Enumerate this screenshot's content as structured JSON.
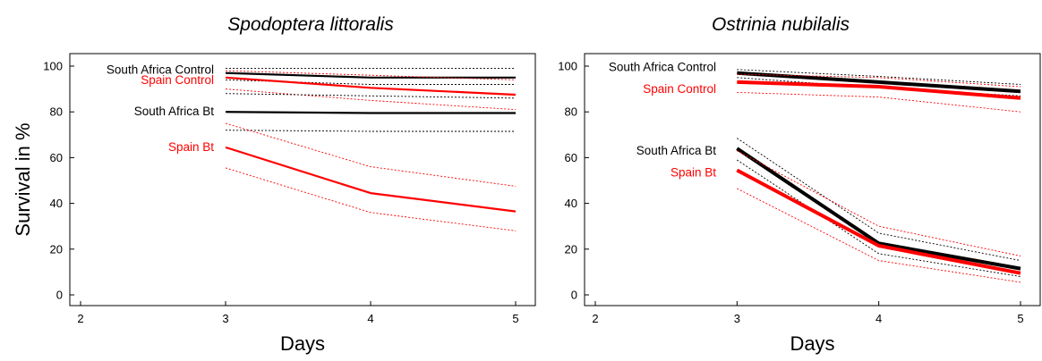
{
  "ylabel": "Survival in %",
  "chart_data": [
    {
      "type": "line",
      "title": "Spodoptera littoralis",
      "xlabel": "Days",
      "ylabel": "Survival in %",
      "xlim": [
        2,
        5
      ],
      "ylim": [
        0,
        100
      ],
      "xticks": [
        2,
        3,
        4,
        5
      ],
      "yticks": [
        0,
        20,
        40,
        60,
        80,
        100
      ],
      "grid": false,
      "series": [
        {
          "name": "South Africa Control",
          "color": "#000000",
          "x": [
            3,
            4,
            5
          ],
          "values": [
            97,
            95,
            95
          ],
          "ci_upper": [
            99,
            99,
            99
          ],
          "ci_lower": [
            94,
            92,
            92
          ]
        },
        {
          "name": "Spain Control",
          "color": "#ff0000",
          "x": [
            3,
            4,
            5
          ],
          "values": [
            95,
            90.5,
            87.5
          ],
          "ci_upper": [
            98,
            96,
            94
          ],
          "ci_lower": [
            90,
            85,
            81
          ]
        },
        {
          "name": "South Africa Bt",
          "color": "#000000",
          "x": [
            3,
            4,
            5
          ],
          "values": [
            80,
            79.5,
            79.5
          ],
          "ci_upper": [
            88,
            87,
            86
          ],
          "ci_lower": [
            72,
            71.5,
            71.5
          ]
        },
        {
          "name": "Spain Bt",
          "color": "#ff0000",
          "x": [
            3,
            4,
            5
          ],
          "values": [
            64.5,
            44.5,
            36.5
          ],
          "ci_upper": [
            75,
            56,
            47.5
          ],
          "ci_lower": [
            55.5,
            36,
            28
          ]
        }
      ]
    },
    {
      "type": "line",
      "title": "Ostrinia nubilalis",
      "xlabel": "Days",
      "ylabel": "",
      "xlim": [
        2,
        5
      ],
      "ylim": [
        0,
        100
      ],
      "xticks": [
        2,
        3,
        4,
        5
      ],
      "yticks": [
        0,
        20,
        40,
        60,
        80,
        100
      ],
      "grid": false,
      "series": [
        {
          "name": "South Africa Control",
          "color": "#000000",
          "x": [
            3,
            4,
            5
          ],
          "values": [
            97,
            93,
            89
          ],
          "ci_upper": [
            98.5,
            95.5,
            92
          ],
          "ci_lower": [
            95,
            90.5,
            87
          ]
        },
        {
          "name": "Spain Control",
          "color": "#ff0000",
          "x": [
            3,
            4,
            5
          ],
          "values": [
            93,
            91,
            86
          ],
          "ci_upper": [
            96.5,
            95,
            91
          ],
          "ci_lower": [
            88.5,
            86.5,
            80
          ]
        },
        {
          "name": "South Africa Bt",
          "color": "#000000",
          "x": [
            3,
            4,
            5
          ],
          "values": [
            64,
            22.5,
            11.5
          ],
          "ci_upper": [
            68.5,
            27,
            15
          ],
          "ci_lower": [
            59,
            18,
            8
          ]
        },
        {
          "name": "Spain Bt",
          "color": "#ff0000",
          "x": [
            3,
            4,
            5
          ],
          "values": [
            54.5,
            21.5,
            9.5
          ],
          "ci_upper": [
            63,
            30,
            17
          ],
          "ci_lower": [
            46.5,
            15,
            5.5
          ]
        }
      ]
    }
  ]
}
